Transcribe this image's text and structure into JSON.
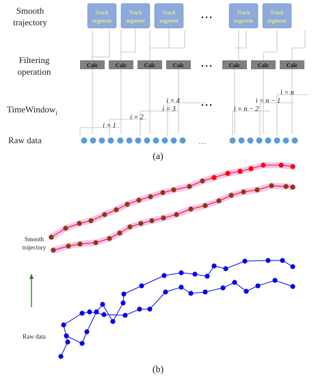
{
  "panel_a": {
    "labels": {
      "smooth_trajectory_1": "Smooth",
      "smooth_trajectory_2": "trajectory",
      "filtering_operation_1": "Filtering",
      "filtering_operation_2": "operation",
      "time_window": "TimeWindow",
      "time_window_sub": "i",
      "raw_data": "Raw data"
    },
    "track_segment_line1": "Track",
    "track_segment_line2": "segment",
    "calc_label": "Calc",
    "ellipsis_dots": "• • •",
    "ellipsis_raw": "…",
    "window_labels": [
      "i = 1",
      "i = 2",
      "i = 3",
      "i = 4",
      "i = n − 2",
      "i = n − 1",
      "i = n"
    ],
    "caption": "(a)"
  },
  "panel_b": {
    "label_smooth_1": "Smooth",
    "label_smooth_2": "trajectory",
    "label_raw": "Raw data",
    "caption": "(b)"
  },
  "colors": {
    "track_fill": "#8ea9db",
    "track_text": "#ffff66",
    "calc_fill": "#7f7f7f",
    "raw_dot": "#5b9bd5",
    "red": "#ff0000",
    "brown": "#8b3a0f",
    "blue": "#0000ee",
    "arrow_green": "#2e7d32"
  }
}
